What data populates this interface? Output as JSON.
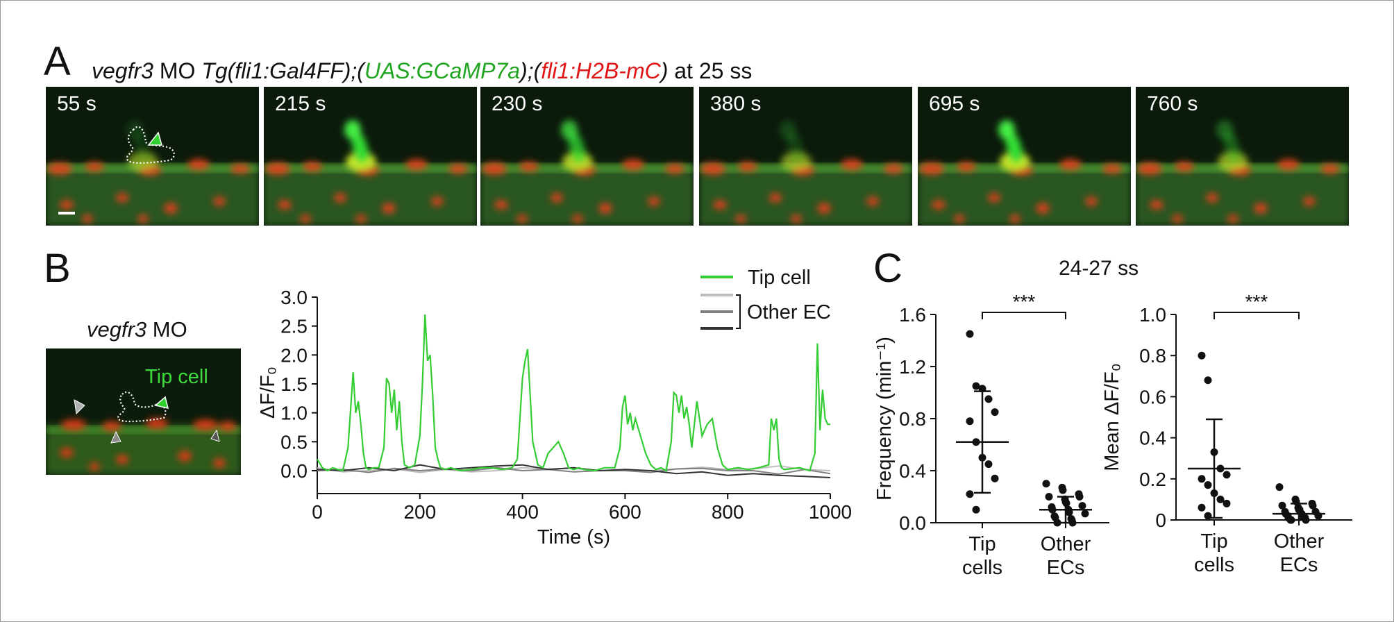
{
  "panel_a": {
    "letter": "A",
    "title_parts": {
      "gene": "vegfr3",
      "mo": " MO ",
      "tg": "Tg(fli1:Gal4FF);(",
      "uas": "UAS:GCaMP7a",
      "mid": ");(",
      "h2b": "fli1:H2B-mC",
      "close": ")",
      "stage": " at 25 ss"
    },
    "frames": [
      "55 s",
      "215 s",
      "230 s",
      "380 s",
      "695 s",
      "760 s"
    ]
  },
  "panel_b": {
    "letter": "B",
    "image_title_gene": "vegfr3",
    "image_title_mo": " MO",
    "image_label": "Tip cell",
    "legend": {
      "tip": "Tip cell",
      "other": "Other EC"
    },
    "colors": {
      "tip": "#33cc33",
      "other_light": "#bdbdbd",
      "other_mid": "#7f7f7f",
      "other_dark": "#333333"
    }
  },
  "panel_c": {
    "letter": "C",
    "title": "24-27 ss",
    "significance": "***"
  },
  "chart_data": [
    {
      "type": "line",
      "xlabel": "Time (s)",
      "ylabel": "ΔF/F₀",
      "xlim": [
        0,
        1000
      ],
      "ylim": [
        -0.3,
        3.0
      ],
      "xticks": [
        0,
        200,
        400,
        600,
        800,
        1000
      ],
      "yticks": [
        0,
        0.5,
        1.0,
        1.5,
        2.0,
        2.5,
        3.0
      ],
      "series": [
        {
          "name": "Tip cell",
          "color": "#33cc33",
          "x": [
            0,
            10,
            20,
            30,
            40,
            50,
            60,
            70,
            75,
            80,
            85,
            90,
            95,
            100,
            110,
            120,
            130,
            135,
            140,
            145,
            150,
            155,
            160,
            165,
            170,
            180,
            190,
            200,
            205,
            210,
            215,
            220,
            225,
            230,
            235,
            240,
            250,
            260,
            270,
            280,
            300,
            320,
            340,
            360,
            380,
            390,
            400,
            405,
            410,
            415,
            420,
            430,
            440,
            450,
            460,
            470,
            480,
            490,
            500,
            510,
            520,
            540,
            560,
            580,
            590,
            595,
            600,
            605,
            610,
            615,
            620,
            630,
            640,
            650,
            660,
            670,
            680,
            690,
            695,
            700,
            705,
            710,
            715,
            720,
            725,
            730,
            740,
            750,
            760,
            770,
            780,
            790,
            800,
            820,
            840,
            860,
            880,
            885,
            890,
            895,
            900,
            905,
            910,
            940,
            960,
            970,
            975,
            980,
            985,
            990,
            995,
            1000
          ],
          "y": [
            0.2,
            0.05,
            0,
            0.05,
            0.02,
            0,
            0.4,
            1.7,
            1.0,
            1.2,
            0.8,
            0.3,
            0.05,
            0.02,
            0.05,
            0.05,
            0.4,
            1.6,
            1.5,
            1.0,
            1.4,
            0.7,
            1.2,
            0.5,
            0.1,
            0.05,
            0.1,
            0.6,
            1.5,
            2.7,
            1.9,
            2.0,
            1.3,
            0.4,
            0.2,
            0.05,
            0.02,
            0.05,
            0.02,
            0,
            0.02,
            0.05,
            0.05,
            0.02,
            0.05,
            0.2,
            1.6,
            1.9,
            2.1,
            1.3,
            0.5,
            0.1,
            0.05,
            0.3,
            0.4,
            0.5,
            0.3,
            0.05,
            0.02,
            0.05,
            0.02,
            0,
            0.05,
            0.05,
            0.4,
            1.1,
            1.3,
            0.8,
            1.0,
            0.7,
            0.9,
            0.6,
            0.3,
            0.1,
            0.02,
            0.05,
            0,
            0.5,
            1.35,
            1.3,
            1.0,
            1.3,
            0.9,
            1.1,
            0.8,
            0.4,
            1.2,
            0.6,
            0.8,
            0.9,
            0.4,
            0.1,
            0.02,
            0.05,
            0.02,
            0.05,
            0.1,
            0.9,
            0.7,
            0.9,
            0.2,
            0.05,
            0.02,
            0.05,
            0,
            0.3,
            2.2,
            0.7,
            1.4,
            0.9,
            0.8,
            0.8
          ]
        },
        {
          "name": "Other EC 1",
          "color": "#bdbdbd",
          "x": [
            0,
            50,
            100,
            150,
            200,
            250,
            300,
            350,
            400,
            450,
            500,
            550,
            600,
            650,
            700,
            750,
            800,
            850,
            900,
            950,
            1000
          ],
          "y": [
            0.05,
            -0.02,
            0.0,
            0.03,
            -0.03,
            0.02,
            -0.02,
            0.0,
            0.05,
            0.03,
            0.04,
            0.0,
            0.02,
            0.0,
            0.03,
            0.06,
            0.02,
            0.03,
            0.08,
            0.02,
            0.0
          ]
        },
        {
          "name": "Other EC 2",
          "color": "#7f7f7f",
          "x": [
            0,
            50,
            100,
            150,
            200,
            250,
            300,
            350,
            400,
            450,
            500,
            550,
            600,
            650,
            700,
            750,
            800,
            850,
            900,
            950,
            1000
          ],
          "y": [
            0.0,
            0.02,
            -0.03,
            0.04,
            0.0,
            0.03,
            0.0,
            0.05,
            0.0,
            0.02,
            -0.02,
            0.0,
            0.0,
            -0.03,
            0.03,
            0.04,
            0.0,
            0.0,
            -0.06,
            0.02,
            -0.05
          ]
        },
        {
          "name": "Other EC 3",
          "color": "#333333",
          "x": [
            0,
            50,
            100,
            150,
            200,
            250,
            300,
            350,
            400,
            450,
            500,
            550,
            600,
            650,
            700,
            750,
            800,
            850,
            900,
            950,
            1000
          ],
          "y": [
            0.02,
            0.0,
            0.05,
            0.0,
            0.1,
            0.02,
            0.05,
            0.08,
            0.1,
            0.02,
            0.05,
            0.0,
            0.02,
            0.0,
            -0.05,
            -0.02,
            -0.08,
            -0.05,
            -0.08,
            -0.1,
            -0.12
          ]
        }
      ]
    },
    {
      "type": "scatter",
      "ylabel": "Frequency (min⁻¹)",
      "ylim": [
        0,
        1.6
      ],
      "yticks": [
        0,
        0.4,
        0.8,
        1.2,
        1.6
      ],
      "categories": [
        "Tip cells",
        "Other ECs"
      ],
      "category_lines": [
        [
          "Tip",
          "cells"
        ],
        [
          "Other",
          "ECs"
        ]
      ],
      "groups": [
        {
          "values": [
            1.45,
            1.05,
            1.03,
            0.95,
            0.85,
            0.78,
            0.62,
            0.5,
            0.45,
            0.34,
            0.22,
            0.1
          ],
          "mean": 0.62,
          "sd_low": 0.23,
          "sd_high": 1.01
        },
        {
          "values": [
            0.3,
            0.27,
            0.25,
            0.22,
            0.2,
            0.2,
            0.18,
            0.16,
            0.15,
            0.13,
            0.12,
            0.1,
            0.1,
            0.08,
            0.07,
            0.05,
            0.04,
            0.03,
            0.02,
            0.0,
            0.0
          ],
          "mean": 0.1,
          "sd_low": 0.0,
          "sd_high": 0.2
        }
      ]
    },
    {
      "type": "scatter",
      "ylabel": "Mean ΔF/F₀",
      "ylim": [
        0,
        1.0
      ],
      "yticks": [
        0,
        0.2,
        0.4,
        0.6,
        0.8,
        1.0
      ],
      "categories": [
        "Tip cells",
        "Other ECs"
      ],
      "category_lines": [
        [
          "Tip",
          "cells"
        ],
        [
          "Other",
          "ECs"
        ]
      ],
      "groups": [
        {
          "values": [
            0.8,
            0.68,
            0.33,
            0.25,
            0.22,
            0.2,
            0.17,
            0.13,
            0.1,
            0.08,
            0.06,
            0.02
          ],
          "mean": 0.25,
          "sd_low": 0.01,
          "sd_high": 0.49
        },
        {
          "values": [
            0.16,
            0.1,
            0.09,
            0.08,
            0.07,
            0.07,
            0.06,
            0.05,
            0.05,
            0.04,
            0.04,
            0.03,
            0.03,
            0.02,
            0.02,
            0.02,
            0.01,
            0.01,
            0.01,
            0.0,
            0.0,
            0.0
          ],
          "mean": 0.03,
          "sd_low": 0.0,
          "sd_high": 0.08
        }
      ]
    }
  ]
}
